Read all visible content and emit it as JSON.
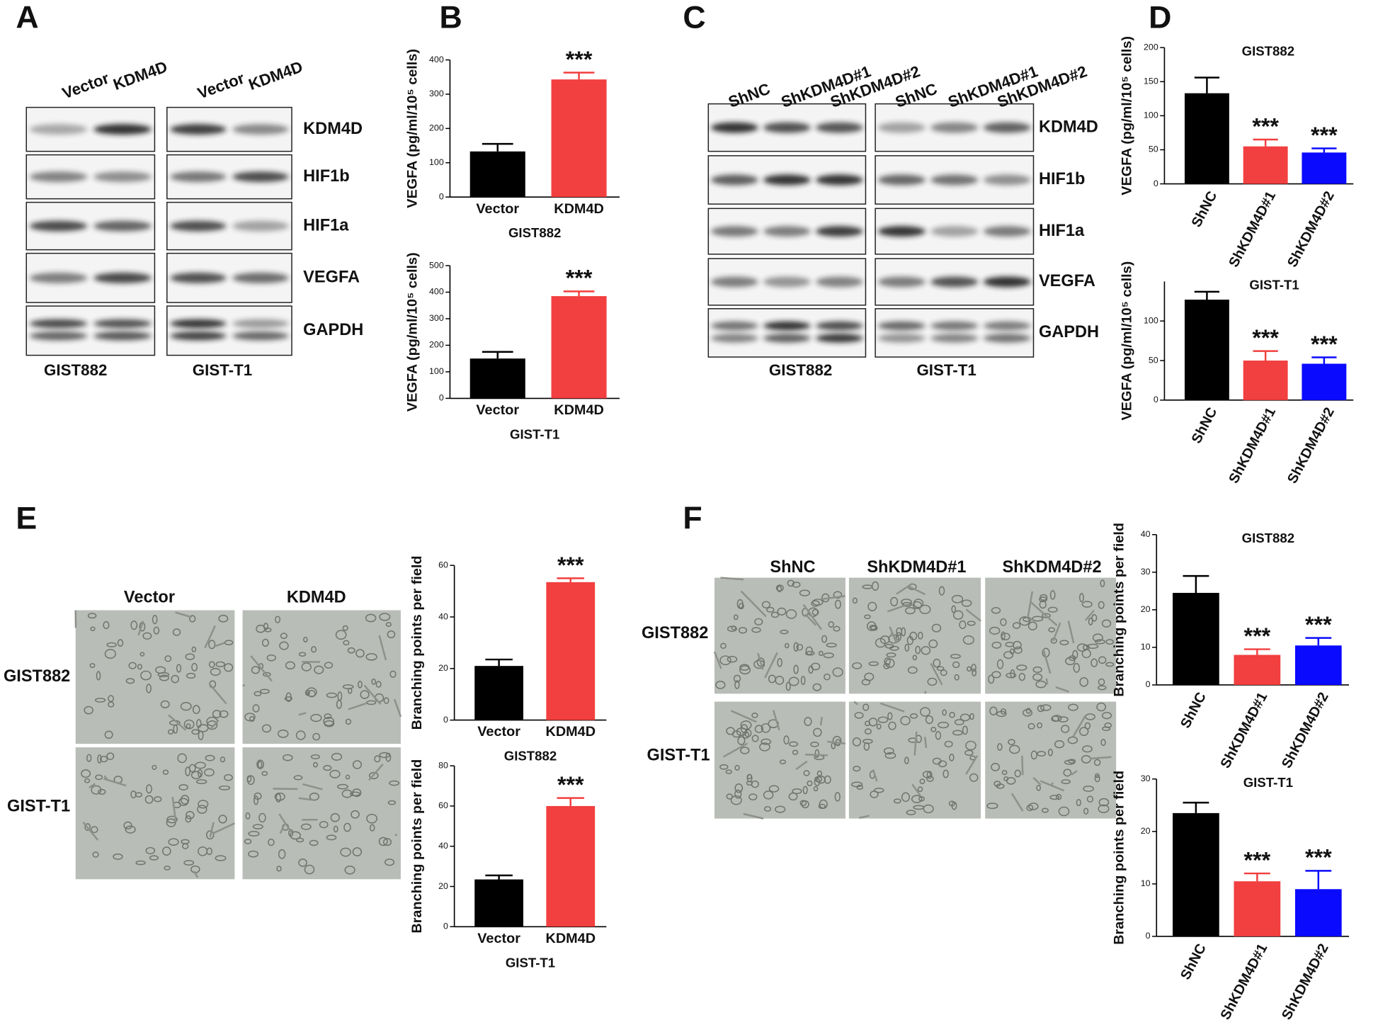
{
  "panel_letters": [
    "A",
    "B",
    "C",
    "D",
    "E",
    "F"
  ],
  "blot_A": {
    "lanes": [
      "Vector",
      "KDM4D",
      "Vector",
      "KDM4D"
    ],
    "proteins": [
      "KDM4D",
      "HIF1b",
      "HIF1a",
      "VEGFA",
      "GAPDH"
    ],
    "cell_lines": [
      "GIST882",
      "GIST-T1"
    ]
  },
  "blot_C": {
    "lanes": [
      "ShNC",
      "ShKDM4D#1",
      "ShKDM4D#2",
      "ShNC",
      "ShKDM4D#1",
      "ShKDM4D#2"
    ],
    "proteins": [
      "KDM4D",
      "HIF1b",
      "HIF1a",
      "VEGFA",
      "GAPDH"
    ],
    "cell_lines": [
      "GIST882",
      "GIST-T1"
    ]
  },
  "tube_E": {
    "columns": [
      "Vector",
      "KDM4D"
    ],
    "rows": [
      "GIST882",
      "GIST-T1"
    ]
  },
  "tube_F": {
    "columns": [
      "ShNC",
      "ShKDM4D#1",
      "ShKDM4D#2"
    ],
    "rows": [
      "GIST882",
      "GIST-T1"
    ]
  },
  "chart_data": [
    {
      "type": "bar",
      "ylabel": "VEGFA (pg/ml/10⁵ cells)",
      "xlabel": "GIST882",
      "categories": [
        "Vector",
        "KDM4D"
      ],
      "values": [
        133,
        343
      ],
      "errors": [
        22,
        20
      ],
      "colors": [
        "#000000",
        "#f23f3f"
      ],
      "significance": [
        null,
        "***"
      ],
      "ylim": [
        0,
        400
      ],
      "yticks": [
        0,
        100,
        200,
        300,
        400
      ]
    },
    {
      "type": "bar",
      "ylabel": "VEGFA (pg/ml/10⁵ cells)",
      "xlabel": "GIST-T1",
      "categories": [
        "Vector",
        "KDM4D"
      ],
      "values": [
        150,
        385
      ],
      "errors": [
        25,
        18
      ],
      "colors": [
        "#000000",
        "#f23f3f"
      ],
      "significance": [
        null,
        "***"
      ],
      "ylim": [
        0,
        500
      ],
      "yticks": [
        0,
        100,
        200,
        300,
        400,
        500
      ]
    },
    {
      "type": "bar",
      "ylabel": "VEGFA (pg/ml/10⁵ cells)",
      "title": "GIST882",
      "categories": [
        "ShNC",
        "ShKDM4D#1",
        "ShKDM4D#2"
      ],
      "values": [
        133,
        55,
        46
      ],
      "errors": [
        23,
        10,
        6
      ],
      "colors": [
        "#000000",
        "#f23f3f",
        "#0a0aff"
      ],
      "significance": [
        null,
        "***",
        "***"
      ],
      "ylim": [
        0,
        200
      ],
      "yticks": [
        0,
        50,
        100,
        150,
        200
      ]
    },
    {
      "type": "bar",
      "ylabel": "VEGFA (pg/ml/10⁵ cells)",
      "title": "GIST-T1",
      "categories": [
        "ShNC",
        "ShKDM4D#1",
        "ShKDM4D#2"
      ],
      "values": [
        127,
        50,
        46
      ],
      "errors": [
        10,
        12,
        8
      ],
      "colors": [
        "#000000",
        "#f23f3f",
        "#0a0aff"
      ],
      "significance": [
        null,
        "***",
        "***"
      ],
      "ylim": [
        0,
        150
      ],
      "yticks": [
        0,
        50,
        100
      ]
    },
    {
      "type": "bar",
      "ylabel": "Branching points per field",
      "xlabel": "GIST882",
      "categories": [
        "Vector",
        "KDM4D"
      ],
      "values": [
        21,
        53.5
      ],
      "errors": [
        2.5,
        1.5
      ],
      "colors": [
        "#000000",
        "#f23f3f"
      ],
      "significance": [
        null,
        "***"
      ],
      "ylim": [
        0,
        60
      ],
      "yticks": [
        0,
        20,
        40,
        60
      ]
    },
    {
      "type": "bar",
      "ylabel": "Branching points per field",
      "xlabel": "GIST-T1",
      "categories": [
        "Vector",
        "KDM4D"
      ],
      "values": [
        23.5,
        60
      ],
      "errors": [
        2,
        4
      ],
      "colors": [
        "#000000",
        "#f23f3f"
      ],
      "significance": [
        null,
        "***"
      ],
      "ylim": [
        0,
        80
      ],
      "yticks": [
        0,
        20,
        40,
        60,
        80
      ]
    },
    {
      "type": "bar",
      "ylabel": "Branching points per field",
      "title": "GIST882",
      "categories": [
        "ShNC",
        "ShKDM4D#1",
        "ShKDM4D#2"
      ],
      "values": [
        24.5,
        8,
        10.5
      ],
      "errors": [
        4.5,
        1.5,
        2
      ],
      "colors": [
        "#000000",
        "#f23f3f",
        "#0a0aff"
      ],
      "significance": [
        null,
        "***",
        "***"
      ],
      "ylim": [
        0,
        40
      ],
      "yticks": [
        0,
        10,
        20,
        30,
        40
      ]
    },
    {
      "type": "bar",
      "ylabel": "Branching points per field",
      "title": "GIST-T1",
      "categories": [
        "ShNC",
        "ShKDM4D#1",
        "ShKDM4D#2"
      ],
      "values": [
        23.5,
        10.5,
        9
      ],
      "errors": [
        2,
        1.5,
        3.5
      ],
      "colors": [
        "#000000",
        "#f23f3f",
        "#0a0aff"
      ],
      "significance": [
        null,
        "***",
        "***"
      ],
      "ylim": [
        0,
        30
      ],
      "yticks": [
        0,
        10,
        20,
        30
      ]
    }
  ]
}
